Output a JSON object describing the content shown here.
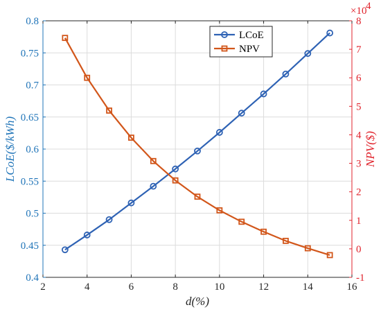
{
  "chart_data": {
    "type": "line",
    "x": [
      3,
      4,
      5,
      6,
      7,
      8,
      9,
      10,
      11,
      12,
      13,
      14,
      15
    ],
    "xlabel": "d(%)",
    "xlim": [
      2,
      16
    ],
    "xticks": [
      "2",
      "4",
      "6",
      "8",
      "10",
      "12",
      "14",
      "16"
    ],
    "ylabel_left": "LCoE($/kWh)",
    "ylim_left": [
      0.4,
      0.8
    ],
    "yticks_left": [
      "0.4",
      "0.45",
      "0.5",
      "0.55",
      "0.6",
      "0.65",
      "0.7",
      "0.75",
      "0.8"
    ],
    "ylabel_right": "NPV($)",
    "ylim_right": [
      -1,
      8
    ],
    "yticks_right": [
      "-1",
      "0",
      "1",
      "2",
      "3",
      "4",
      "5",
      "6",
      "7",
      "8"
    ],
    "right_axis_multiplier": "×10",
    "right_axis_exponent": "4",
    "grid": true,
    "legend_position": "top-right",
    "series": [
      {
        "name": "LCoE",
        "axis": "left",
        "marker": "circle",
        "color": "#2e62b4",
        "values": [
          0.443,
          0.466,
          0.49,
          0.516,
          0.542,
          0.569,
          0.597,
          0.626,
          0.656,
          0.686,
          0.717,
          0.749,
          0.781
        ]
      },
      {
        "name": "NPV",
        "axis": "right",
        "marker": "square",
        "color": "#d2561a",
        "values": [
          7.4,
          6.0,
          4.85,
          3.9,
          3.08,
          2.4,
          1.83,
          1.35,
          0.95,
          0.6,
          0.28,
          0.02,
          -0.22
        ]
      }
    ],
    "colors": {
      "left_axis": "#1f74b8",
      "right_axis": "#e0222b",
      "overlap_line": "#8a6a1a",
      "grid": "#dcdcdc"
    }
  }
}
